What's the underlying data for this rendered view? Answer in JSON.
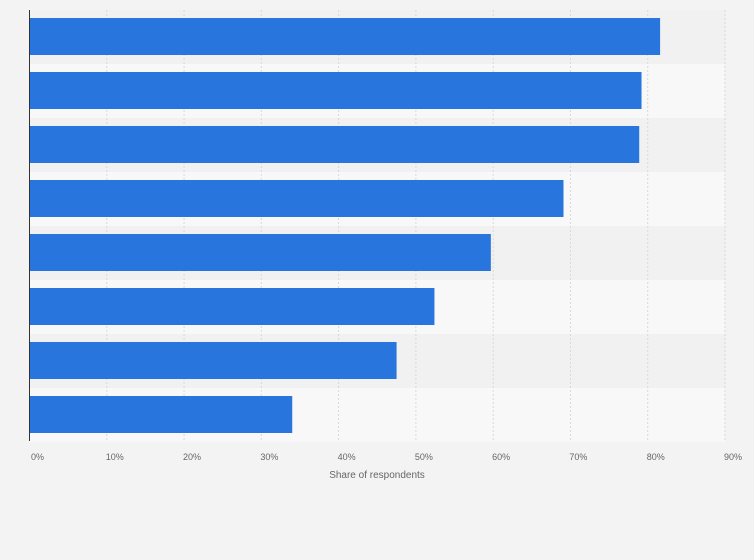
{
  "chart_data": {
    "type": "bar",
    "orientation": "horizontal",
    "title": "",
    "categories": [
      "",
      "",
      "",
      "",
      "",
      "",
      "",
      ""
    ],
    "values": [
      81.6,
      79.2,
      78.9,
      69.1,
      59.7,
      52.4,
      47.5,
      34.0
    ],
    "unit": "%",
    "xlabel": "Share of respondents",
    "ylabel": "",
    "xlim": [
      0,
      90
    ],
    "xticks": [
      "0%",
      "10%",
      "20%",
      "30%",
      "40%",
      "50%",
      "60%",
      "70%",
      "80%",
      "90%"
    ],
    "grid": true,
    "legend": "none",
    "colors": {
      "bar": "#2876dd",
      "band_dark": "#f1f1f1",
      "band_light": "#f8f8f8",
      "background": "#f3f3f3"
    }
  }
}
